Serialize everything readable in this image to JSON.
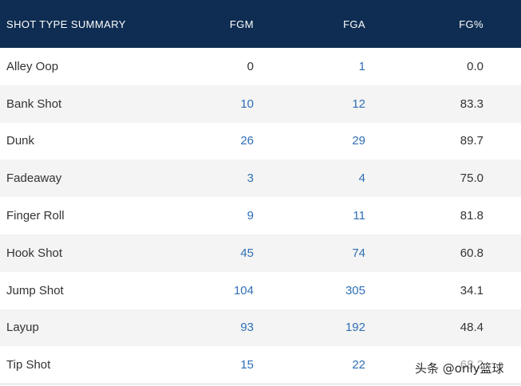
{
  "header": {
    "shot_type": "SHOT TYPE SUMMARY",
    "fgm": "FGM",
    "fga": "FGA",
    "fg_pct": "FG%"
  },
  "rows": [
    {
      "type": "Alley Oop",
      "fgm": "0",
      "fga": "1",
      "fg_pct": "0.0"
    },
    {
      "type": "Bank Shot",
      "fgm": "10",
      "fga": "12",
      "fg_pct": "83.3"
    },
    {
      "type": "Dunk",
      "fgm": "26",
      "fga": "29",
      "fg_pct": "89.7"
    },
    {
      "type": "Fadeaway",
      "fgm": "3",
      "fga": "4",
      "fg_pct": "75.0"
    },
    {
      "type": "Finger Roll",
      "fgm": "9",
      "fga": "11",
      "fg_pct": "81.8"
    },
    {
      "type": "Hook Shot",
      "fgm": "45",
      "fga": "74",
      "fg_pct": "60.8"
    },
    {
      "type": "Jump Shot",
      "fgm": "104",
      "fga": "305",
      "fg_pct": "34.1"
    },
    {
      "type": "Layup",
      "fgm": "93",
      "fga": "192",
      "fg_pct": "48.4"
    },
    {
      "type": "Tip Shot",
      "fgm": "15",
      "fga": "22",
      "fg_pct": "68.2"
    }
  ],
  "watermark": "头条 @only篮球",
  "colors": {
    "header_bg": "#0f2d52",
    "link": "#2f6fb5",
    "row_alt": "#f4f4f4"
  }
}
